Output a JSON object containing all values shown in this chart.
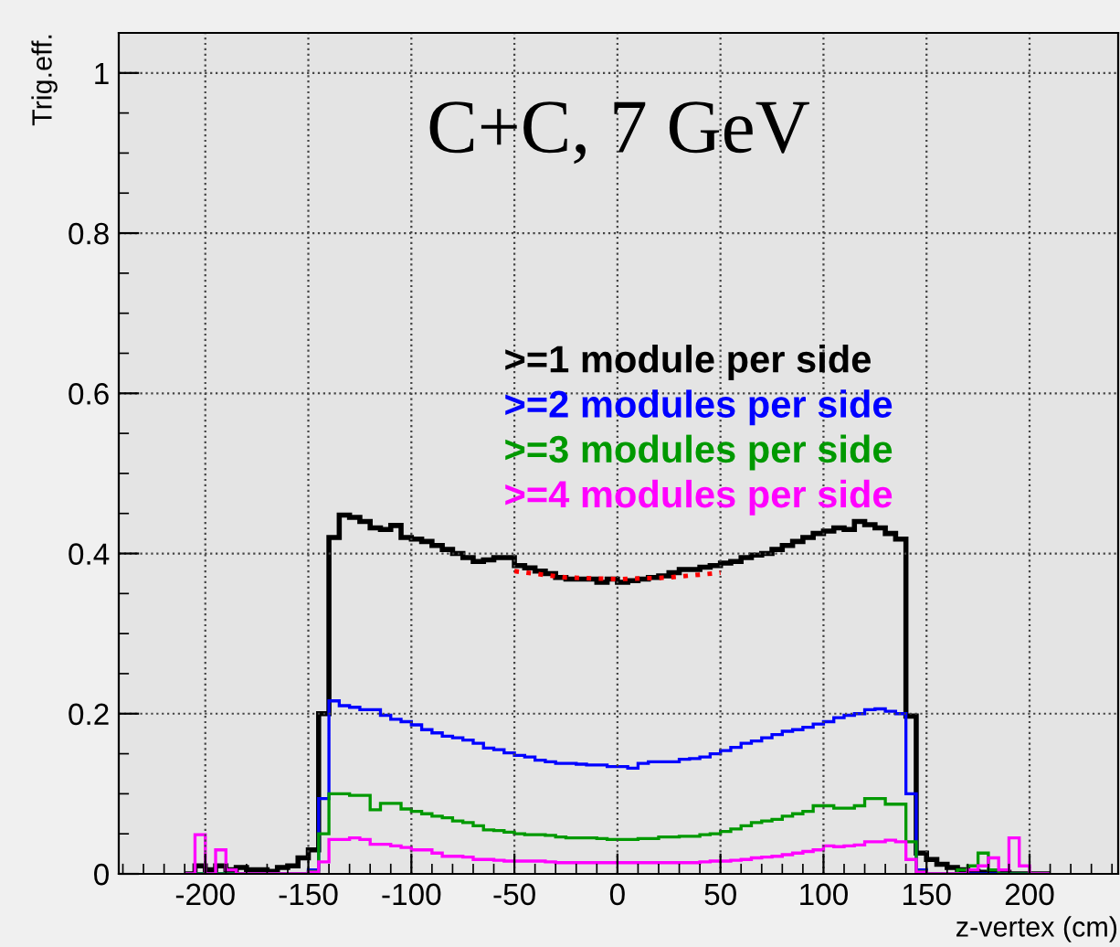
{
  "chart_data": {
    "type": "histogram",
    "title": "C+C, 7 GeV",
    "xlabel": "z-vertex (cm)",
    "ylabel": "Trig.eff.",
    "bins": [
      -210,
      -205,
      -200,
      -195,
      -190,
      -185,
      -180,
      -175,
      -170,
      -165,
      -160,
      -155,
      -150,
      -145,
      -140,
      -135,
      -130,
      -125,
      -120,
      -115,
      -110,
      -105,
      -100,
      -95,
      -90,
      -85,
      -80,
      -75,
      -70,
      -65,
      -60,
      -55,
      -50,
      -45,
      -40,
      -35,
      -30,
      -25,
      -20,
      -15,
      -10,
      -5,
      0,
      5,
      10,
      15,
      20,
      25,
      30,
      35,
      40,
      45,
      50,
      55,
      60,
      65,
      70,
      75,
      80,
      85,
      90,
      95,
      100,
      105,
      110,
      115,
      120,
      125,
      130,
      135,
      140,
      145,
      150,
      155,
      160,
      165,
      170,
      175,
      180,
      185,
      190,
      195,
      200,
      205,
      210
    ],
    "series": [
      {
        "name": ">=1 module per side",
        "color": "#000000",
        "values": [
          0,
          0.01,
          0.005,
          0.01,
          0.005,
          0.008,
          0.005,
          0.005,
          0.003,
          0.008,
          0.01,
          0.02,
          0.03,
          0.2,
          0.42,
          0.448,
          0.445,
          0.44,
          0.432,
          0.43,
          0.435,
          0.42,
          0.418,
          0.415,
          0.41,
          0.405,
          0.4,
          0.395,
          0.39,
          0.392,
          0.395,
          0.395,
          0.385,
          0.382,
          0.378,
          0.375,
          0.37,
          0.368,
          0.368,
          0.368,
          0.364,
          0.368,
          0.364,
          0.366,
          0.368,
          0.37,
          0.372,
          0.376,
          0.38,
          0.38,
          0.383,
          0.385,
          0.388,
          0.39,
          0.395,
          0.398,
          0.4,
          0.405,
          0.41,
          0.415,
          0.42,
          0.425,
          0.428,
          0.432,
          0.43,
          0.44,
          0.436,
          0.432,
          0.425,
          0.418,
          0.197,
          0.026,
          0.018,
          0.012,
          0.008,
          0.005,
          0.003,
          0.002,
          0.002,
          0.002,
          0,
          0,
          0,
          0
        ]
      },
      {
        "name": ">=2 modules per side",
        "color": "#0000ff",
        "values": [
          0,
          0,
          0,
          0,
          0,
          0,
          0,
          0,
          0,
          0,
          0,
          0,
          0.005,
          0.094,
          0.216,
          0.21,
          0.208,
          0.205,
          0.205,
          0.198,
          0.193,
          0.19,
          0.186,
          0.18,
          0.176,
          0.172,
          0.17,
          0.167,
          0.163,
          0.157,
          0.155,
          0.151,
          0.148,
          0.146,
          0.142,
          0.14,
          0.138,
          0.138,
          0.137,
          0.136,
          0.136,
          0.134,
          0.134,
          0.132,
          0.138,
          0.14,
          0.14,
          0.14,
          0.143,
          0.144,
          0.146,
          0.15,
          0.154,
          0.158,
          0.163,
          0.166,
          0.17,
          0.174,
          0.178,
          0.18,
          0.183,
          0.187,
          0.19,
          0.195,
          0.198,
          0.2,
          0.205,
          0.206,
          0.203,
          0.2,
          0.1,
          0.005,
          0,
          0,
          0,
          0,
          0,
          0,
          0,
          0,
          0,
          0,
          0,
          0
        ]
      },
      {
        "name": ">=3 modules per side",
        "color": "#009900",
        "values": [
          0,
          0,
          0,
          0,
          0,
          0,
          0,
          0,
          0,
          0,
          0,
          0,
          0.003,
          0.05,
          0.1,
          0.1,
          0.098,
          0.098,
          0.08,
          0.088,
          0.088,
          0.081,
          0.078,
          0.075,
          0.072,
          0.07,
          0.066,
          0.064,
          0.06,
          0.055,
          0.054,
          0.052,
          0.05,
          0.049,
          0.049,
          0.048,
          0.046,
          0.045,
          0.045,
          0.045,
          0.044,
          0.043,
          0.043,
          0.043,
          0.044,
          0.044,
          0.046,
          0.046,
          0.047,
          0.047,
          0.049,
          0.05,
          0.053,
          0.056,
          0.06,
          0.064,
          0.066,
          0.068,
          0.072,
          0.075,
          0.078,
          0.085,
          0.085,
          0.082,
          0.082,
          0.085,
          0.094,
          0.094,
          0.087,
          0.087,
          0.04,
          0.003,
          0,
          0,
          0,
          0.005,
          0.01,
          0.026,
          0.005,
          0,
          0,
          0,
          0,
          0
        ]
      },
      {
        "name": ">=4 modules per side",
        "color": "#ff00ff",
        "values": [
          0,
          0.049,
          0,
          0.03,
          0.005,
          0,
          0,
          0,
          0,
          0,
          0,
          0,
          0.002,
          0.015,
          0.043,
          0.043,
          0.045,
          0.043,
          0.037,
          0.037,
          0.035,
          0.033,
          0.03,
          0.03,
          0.026,
          0.022,
          0.022,
          0.021,
          0.018,
          0.018,
          0.017,
          0.016,
          0.016,
          0.016,
          0.016,
          0.015,
          0.014,
          0.014,
          0.014,
          0.014,
          0.014,
          0.014,
          0.014,
          0.014,
          0.014,
          0.014,
          0.014,
          0.014,
          0.014,
          0.014,
          0.015,
          0.016,
          0.016,
          0.017,
          0.018,
          0.02,
          0.021,
          0.022,
          0.024,
          0.026,
          0.028,
          0.03,
          0.035,
          0.034,
          0.035,
          0.036,
          0.04,
          0.04,
          0.042,
          0.04,
          0.018,
          0.002,
          0,
          0,
          0,
          0,
          0.005,
          0.01,
          0.02,
          0.005,
          0.045,
          0.01,
          0,
          0
        ]
      },
      {
        "type": "line",
        "color": "#ff0000",
        "line_style": "dotted",
        "x": [
          -50,
          -25,
          0,
          25,
          50
        ],
        "values": [
          0.378,
          0.37,
          0.368,
          0.37,
          0.376
        ]
      }
    ],
    "xlim": [
      -242,
      243
    ],
    "ylim": [
      0,
      1.05
    ],
    "xticks": [
      -200,
      -150,
      -100,
      -50,
      0,
      50,
      100,
      150,
      200
    ],
    "yticks": [
      0,
      0.2,
      0.4,
      0.6,
      0.8,
      1
    ],
    "grid": true,
    "legend": "top"
  }
}
